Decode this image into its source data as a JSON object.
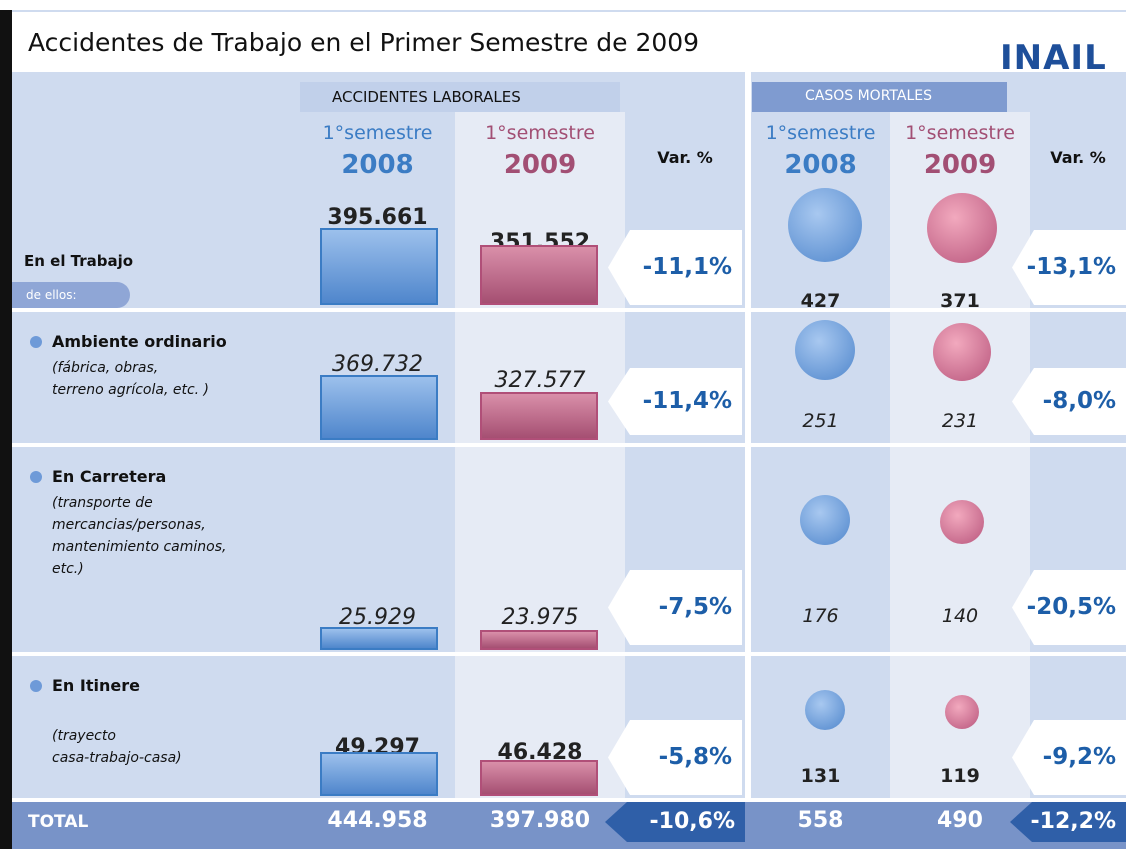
{
  "title": "Accidentes de Trabajo en el Primer Semestre de 2009",
  "logo": "INAIL",
  "headers": {
    "accidents": "ACCIDENTES LABORALES",
    "deaths": "CASOS MORTALES",
    "columns": [
      {
        "period": "1°semestre",
        "year": "2008"
      },
      {
        "period": "1°semestre",
        "year": "2009"
      },
      {
        "label": "Var. %"
      },
      {
        "period": "1°semestre",
        "year": "2008"
      },
      {
        "period": "1°semestre",
        "year": "2009"
      },
      {
        "label": "Var. %"
      }
    ]
  },
  "rows": [
    {
      "label": "En el Trabajo",
      "tag": "de ellos:",
      "values": [
        "395.661",
        "351.552",
        "-11,1%",
        "427",
        "371",
        "-13,1%"
      ]
    },
    {
      "label": "Ambiente ordinario",
      "note": [
        "(fábrica, obras,",
        "terreno agrícola, etc. )"
      ],
      "values": [
        "369.732",
        "327.577",
        "-11,4%",
        "251",
        "231",
        "-8,0%"
      ]
    },
    {
      "label": "En Carretera",
      "note": [
        "(transporte de",
        "mercancias/personas,",
        "mantenimiento caminos,",
        "etc.)"
      ],
      "values": [
        "25.929",
        "23.975",
        "-7,5%",
        "176",
        "140",
        "-20,5%"
      ]
    },
    {
      "label": "En Itinere",
      "note": [
        "(trayecto",
        "casa-trabajo-casa)"
      ],
      "values": [
        "49.297",
        "46.428",
        "-5,8%",
        "131",
        "119",
        "-9,2%"
      ]
    }
  ],
  "total": {
    "label": "TOTAL",
    "values": [
      "444.958",
      "397.980",
      "-10,6%",
      "558",
      "490",
      "-12,2%"
    ]
  }
}
